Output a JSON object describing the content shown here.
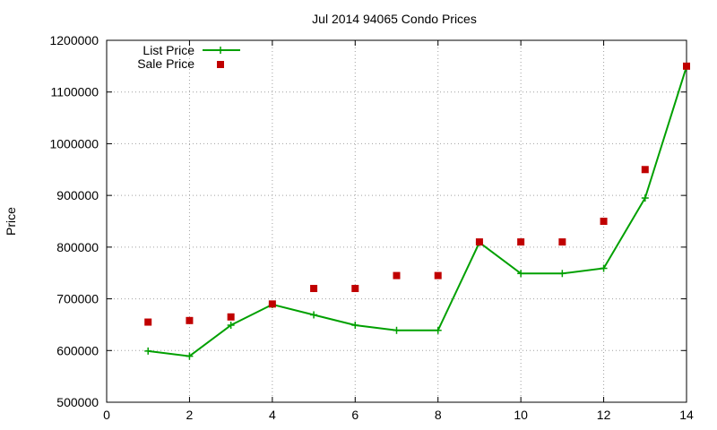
{
  "chart_data": {
    "type": "line",
    "title": "Jul 2014 94065 Condo Prices",
    "xlabel": "",
    "ylabel": "Price",
    "xlim": [
      0,
      14
    ],
    "ylim": [
      500000,
      1200000
    ],
    "x_ticks": [
      0,
      2,
      4,
      6,
      8,
      10,
      12,
      14
    ],
    "y_ticks": [
      500000,
      600000,
      700000,
      800000,
      900000,
      1000000,
      1100000,
      1200000
    ],
    "grid": true,
    "legend_position": "top-left",
    "series": [
      {
        "name": "List Price",
        "style": "line-with-plus-markers",
        "color": "#00a000",
        "x": [
          1,
          2,
          3,
          4,
          5,
          6,
          7,
          8,
          9,
          10,
          11,
          12,
          13,
          14
        ],
        "y": [
          599000,
          589000,
          649000,
          689000,
          669000,
          649000,
          639000,
          639000,
          809000,
          749000,
          749000,
          759000,
          895000,
          1149000
        ]
      },
      {
        "name": "Sale Price",
        "style": "square-markers",
        "color": "#c00000",
        "x": [
          1,
          2,
          3,
          4,
          5,
          6,
          7,
          8,
          9,
          10,
          11,
          12,
          13,
          14
        ],
        "y": [
          655000,
          658000,
          665000,
          690000,
          720000,
          720000,
          745000,
          745000,
          810000,
          810000,
          810000,
          850000,
          950000,
          1150000
        ]
      }
    ]
  }
}
